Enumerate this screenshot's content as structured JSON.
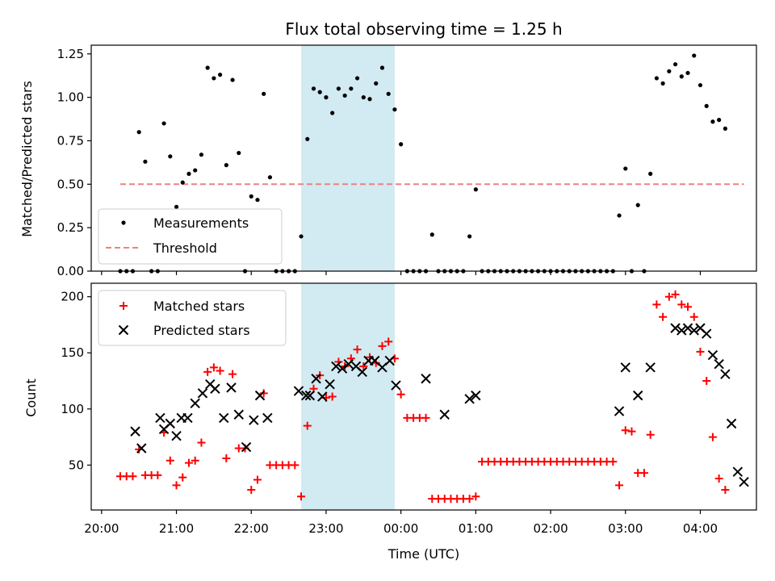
{
  "chart_data": {
    "title": "Flux total observing time = 1.25 h",
    "xlabel": "Time (UTC)",
    "x_ticks": [
      "20:00",
      "21:00",
      "22:00",
      "23:00",
      "00:00",
      "01:00",
      "02:00",
      "03:00",
      "04:00"
    ],
    "highlight_span": {
      "start": "22:40",
      "end": "23:55",
      "color": "#add8e6"
    },
    "panels": [
      {
        "type": "scatter",
        "ylabel": "Matched/Predicted stars",
        "ylim": [
          0,
          1.3
        ],
        "y_ticks": [
          "0.00",
          "0.25",
          "0.50",
          "0.75",
          "1.00",
          "1.25"
        ],
        "legend_position": "lower-left",
        "threshold": {
          "name": "Threshold",
          "value": 0.5,
          "x_start": "20:15",
          "x_end": "04:35",
          "color": "#f08080"
        },
        "series": [
          {
            "name": "Measurements",
            "color": "#000000",
            "marker": "dot",
            "x": [
              "20:15",
              "20:20",
              "20:25",
              "20:30",
              "20:35",
              "20:40",
              "20:45",
              "20:50",
              "20:55",
              "21:00",
              "21:05",
              "21:10",
              "21:15",
              "21:20",
              "21:25",
              "21:30",
              "21:35",
              "21:40",
              "21:45",
              "21:50",
              "21:55",
              "22:00",
              "22:05",
              "22:10",
              "22:15",
              "22:20",
              "22:25",
              "22:30",
              "22:35",
              "22:40",
              "22:45",
              "22:50",
              "22:55",
              "23:00",
              "23:05",
              "23:10",
              "23:15",
              "23:20",
              "23:25",
              "23:30",
              "23:35",
              "23:40",
              "23:45",
              "23:50",
              "23:55",
              "00:00",
              "00:05",
              "00:10",
              "00:15",
              "00:20",
              "00:25",
              "00:30",
              "00:35",
              "00:40",
              "00:45",
              "00:50",
              "00:55",
              "01:00",
              "01:05",
              "01:10",
              "01:15",
              "01:20",
              "01:25",
              "01:30",
              "01:35",
              "01:40",
              "01:45",
              "01:50",
              "01:55",
              "02:00",
              "02:05",
              "02:10",
              "02:15",
              "02:20",
              "02:25",
              "02:30",
              "02:35",
              "02:40",
              "02:45",
              "02:50",
              "02:55",
              "03:00",
              "03:05",
              "03:10",
              "03:15",
              "03:20",
              "03:25",
              "03:30",
              "03:35",
              "03:40",
              "03:45",
              "03:50",
              "03:55",
              "04:00",
              "04:05",
              "04:10",
              "04:15",
              "04:20"
            ],
            "y": [
              0,
              0,
              0,
              0.8,
              0.63,
              0,
              0,
              0.85,
              0.66,
              0.37,
              0.51,
              0.56,
              0.58,
              0.67,
              1.17,
              1.11,
              1.13,
              0.61,
              1.1,
              0.68,
              0,
              0.43,
              0.41,
              1.02,
              0.54,
              0,
              0,
              0,
              0,
              0.2,
              0.76,
              1.05,
              1.03,
              1.0,
              0.91,
              1.05,
              1.01,
              1.05,
              1.11,
              1.0,
              0.99,
              1.08,
              1.17,
              1.02,
              0.93,
              0.73,
              0,
              0,
              0,
              0,
              0.21,
              0,
              0,
              0,
              0,
              0,
              0.2,
              0.47,
              0,
              0,
              0,
              0,
              0,
              0,
              0,
              0,
              0,
              0,
              0,
              0,
              0,
              0,
              0,
              0,
              0,
              0,
              0,
              0,
              0,
              0,
              0.32,
              0.59,
              0,
              0.38,
              0,
              0.56,
              1.11,
              1.08,
              1.15,
              1.19,
              1.12,
              1.14,
              1.24,
              1.07,
              0.95,
              0.86,
              0.87,
              0.82
            ]
          }
        ]
      },
      {
        "type": "scatter",
        "ylabel": "Count",
        "ylim": [
          10,
          212
        ],
        "y_ticks": [
          "50",
          "100",
          "150",
          "200"
        ],
        "legend_position": "upper-left",
        "series": [
          {
            "name": "Matched stars",
            "color": "#ff0000",
            "marker": "plus",
            "x": [
              "20:15",
              "20:20",
              "20:25",
              "20:30",
              "20:35",
              "20:40",
              "20:45",
              "20:50",
              "20:55",
              "21:00",
              "21:05",
              "21:10",
              "21:15",
              "21:20",
              "21:25",
              "21:30",
              "21:35",
              "21:40",
              "21:45",
              "21:50",
              "21:55",
              "22:00",
              "22:05",
              "22:10",
              "22:15",
              "22:20",
              "22:25",
              "22:30",
              "22:35",
              "22:40",
              "22:45",
              "22:50",
              "22:55",
              "23:00",
              "23:05",
              "23:10",
              "23:15",
              "23:20",
              "23:25",
              "23:30",
              "23:35",
              "23:40",
              "23:45",
              "23:50",
              "23:55",
              "00:00",
              "00:05",
              "00:10",
              "00:15",
              "00:20",
              "00:25",
              "00:30",
              "00:35",
              "00:40",
              "00:45",
              "00:50",
              "00:55",
              "01:00",
              "01:05",
              "01:10",
              "01:15",
              "01:20",
              "01:25",
              "01:30",
              "01:35",
              "01:40",
              "01:45",
              "01:50",
              "01:55",
              "02:00",
              "02:05",
              "02:10",
              "02:15",
              "02:20",
              "02:25",
              "02:30",
              "02:35",
              "02:40",
              "02:45",
              "02:50",
              "02:55",
              "03:00",
              "03:05",
              "03:10",
              "03:15",
              "03:20",
              "03:25",
              "03:30",
              "03:35",
              "03:40",
              "03:45",
              "03:50",
              "03:55",
              "04:00",
              "04:05",
              "04:10",
              "04:15",
              "04:20"
            ],
            "y": [
              40,
              40,
              40,
              64,
              41,
              41,
              41,
              79,
              54,
              32,
              39,
              52,
              54,
              70,
              133,
              137,
              134,
              56,
              131,
              65,
              65,
              28,
              37,
              114,
              50,
              50,
              50,
              50,
              50,
              22,
              85,
              118,
              130,
              110,
              111,
              142,
              138,
              145,
              153,
              138,
              146,
              141,
              156,
              160,
              145,
              113,
              92,
              92,
              92,
              92,
              20,
              20,
              20,
              20,
              20,
              20,
              20,
              22,
              53,
              53,
              53,
              53,
              53,
              53,
              53,
              53,
              53,
              53,
              53,
              53,
              53,
              53,
              53,
              53,
              53,
              53,
              53,
              53,
              53,
              53,
              32,
              81,
              80,
              43,
              43,
              77,
              193,
              182,
              200,
              202,
              193,
              191,
              182,
              151,
              125,
              75,
              38,
              28
            ]
          },
          {
            "name": "Predicted stars",
            "color": "#000000",
            "marker": "x",
            "x": [
              "20:27",
              "20:32",
              "20:47",
              "20:50",
              "20:55",
              "21:00",
              "21:04",
              "21:09",
              "21:15",
              "21:21",
              "21:27",
              "21:31",
              "21:38",
              "21:44",
              "21:50",
              "21:56",
              "22:02",
              "22:07",
              "22:13",
              "22:38",
              "22:44",
              "22:47",
              "22:52",
              "22:57",
              "23:03",
              "23:08",
              "23:13",
              "23:18",
              "23:24",
              "23:29",
              "23:34",
              "23:39",
              "23:45",
              "23:51",
              "23:56",
              "00:20",
              "00:35",
              "00:55",
              "01:00",
              "02:55",
              "03:00",
              "03:10",
              "03:20",
              "03:40",
              "03:45",
              "03:50",
              "03:55",
              "04:00",
              "04:05",
              "04:10",
              "04:15",
              "04:20",
              "04:25",
              "04:30",
              "04:35"
            ],
            "y": [
              80,
              65,
              92,
              82,
              87,
              76,
              92,
              92,
              105,
              114,
              122,
              118,
              92,
              119,
              95,
              66,
              90,
              112,
              92,
              116,
              112,
              112,
              127,
              111,
              122,
              138,
              136,
              140,
              138,
              133,
              143,
              143,
              137,
              143,
              121,
              127,
              95,
              109,
              112,
              98,
              137,
              112,
              137,
              172,
              170,
              172,
              170,
              172,
              167,
              148,
              140,
              131,
              87,
              44,
              35
            ]
          }
        ]
      }
    ]
  }
}
